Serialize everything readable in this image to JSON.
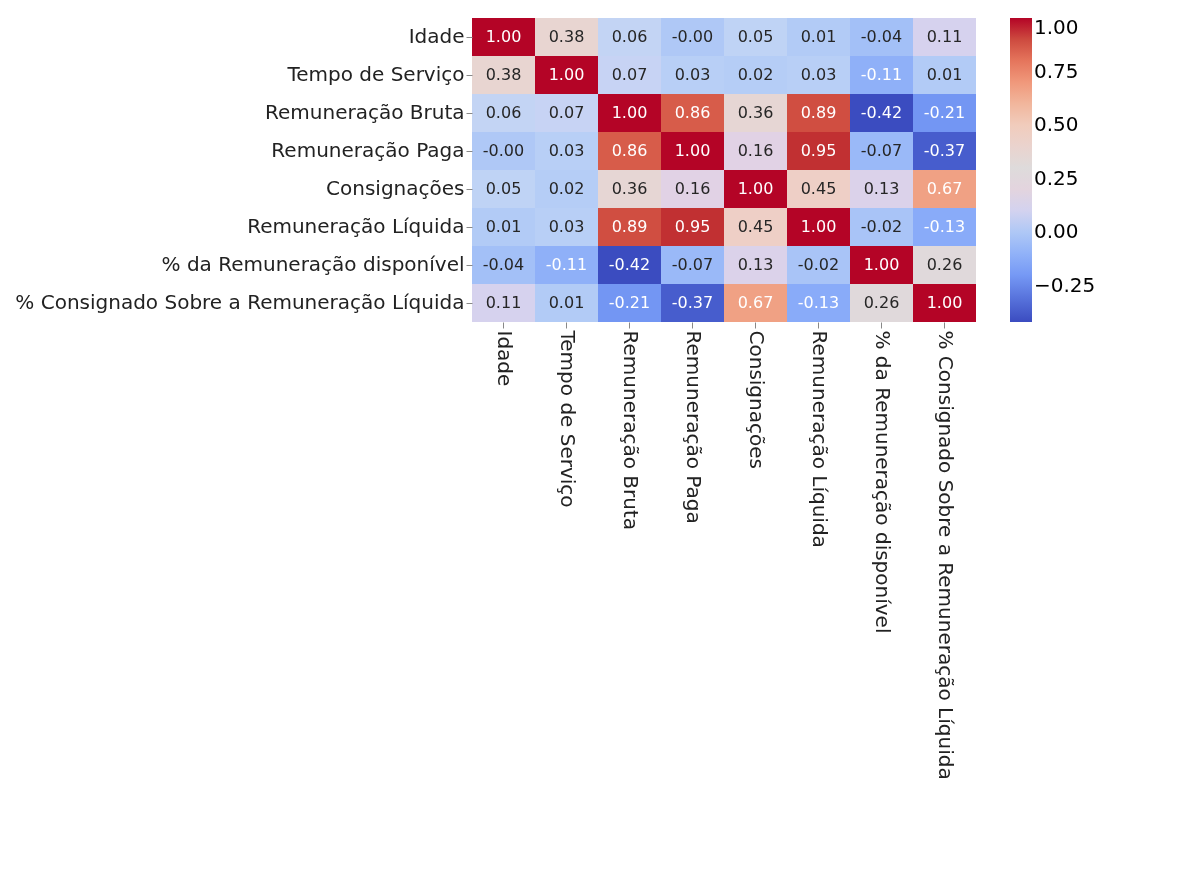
{
  "chart_data": {
    "type": "heatmap",
    "categories": [
      "Idade",
      "Tempo de Serviço",
      "Remuneração Bruta",
      "Remuneração Paga",
      "Consignações",
      "Remuneração Líquida",
      "% da Remuneração disponível",
      "% Consignado Sobre a Remuneração Líquida"
    ],
    "y_categories": [
      "Idade",
      "Tempo de Serviço",
      "Remuneração Bruta",
      "Remuneração Paga",
      "Consignações",
      "Remuneração Líquida",
      "% da Remuneração disponível",
      "% Consignado Sobre a Remuneração Líquida"
    ],
    "cells": [
      [
        1.0,
        0.38,
        0.06,
        0.0,
        0.05,
        0.01,
        -0.04,
        0.11
      ],
      [
        0.38,
        1.0,
        0.07,
        0.03,
        0.02,
        0.03,
        -0.11,
        0.01
      ],
      [
        0.06,
        0.07,
        1.0,
        0.86,
        0.36,
        0.89,
        -0.42,
        -0.21
      ],
      [
        0.0,
        0.03,
        0.86,
        1.0,
        0.16,
        0.95,
        -0.07,
        -0.37
      ],
      [
        0.05,
        0.02,
        0.36,
        0.16,
        1.0,
        0.45,
        0.13,
        0.67
      ],
      [
        0.01,
        0.03,
        0.89,
        0.95,
        0.45,
        1.0,
        -0.02,
        -0.13
      ],
      [
        -0.04,
        -0.11,
        -0.42,
        -0.07,
        0.13,
        -0.02,
        1.0,
        0.26
      ],
      [
        0.11,
        0.01,
        -0.21,
        -0.37,
        0.67,
        -0.13,
        0.26,
        1.0
      ]
    ],
    "cell_labels": [
      [
        "1.00",
        "0.38",
        "0.06",
        "-0.00",
        "0.05",
        "0.01",
        "-0.04",
        "0.11"
      ],
      [
        "0.38",
        "1.00",
        "0.07",
        "0.03",
        "0.02",
        "0.03",
        "-0.11",
        "0.01"
      ],
      [
        "0.06",
        "0.07",
        "1.00",
        "0.86",
        "0.36",
        "0.89",
        "-0.42",
        "-0.21"
      ],
      [
        "-0.00",
        "0.03",
        "0.86",
        "1.00",
        "0.16",
        "0.95",
        "-0.07",
        "-0.37"
      ],
      [
        "0.05",
        "0.02",
        "0.36",
        "0.16",
        "1.00",
        "0.45",
        "0.13",
        "0.67"
      ],
      [
        "0.01",
        "0.03",
        "0.89",
        "0.95",
        "0.45",
        "1.00",
        "-0.02",
        "-0.13"
      ],
      [
        "-0.04",
        "-0.11",
        "-0.42",
        "-0.07",
        "0.13",
        "-0.02",
        "1.00",
        "0.26"
      ],
      [
        "0.11",
        "0.01",
        "-0.21",
        "-0.37",
        "0.67",
        "-0.13",
        "0.26",
        "1.00"
      ]
    ],
    "clim": [
      -0.42,
      1.0
    ],
    "cticks": [
      {
        "value": -0.25,
        "label": "−0.25"
      },
      {
        "value": 0,
        "label": "0.00"
      },
      {
        "value": 0.25,
        "label": "0.25"
      },
      {
        "value": 0.5,
        "label": "0.50"
      },
      {
        "value": 0.75,
        "label": "0.75"
      },
      {
        "value": 1,
        "label": "1.00"
      }
    ]
  }
}
